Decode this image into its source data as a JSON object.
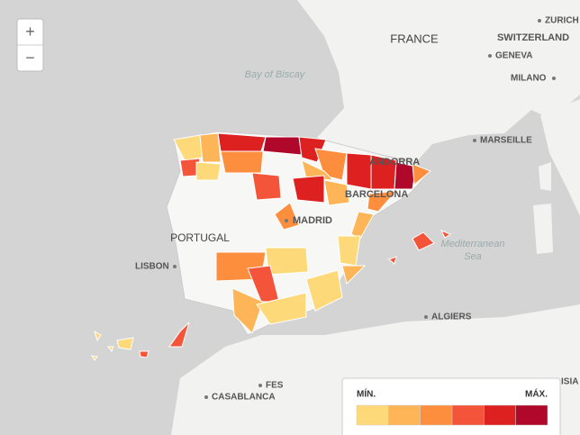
{
  "zoom": {
    "in": "+",
    "out": "−"
  },
  "labels": {
    "france": "FRANCE",
    "switzerland": "SWITZERLAND",
    "zurich": "ZURICH",
    "geneva": "GENEVA",
    "milano": "MILANO",
    "bay": "Bay of Biscay",
    "marseille": "MARSEILLE",
    "andorra": "ANDORRA",
    "barcelona": "BARCELONA",
    "madrid": "MADRID",
    "portugal": "PORTUGAL",
    "lisbon": "LISBON",
    "sea1": "Mediterranean",
    "sea2": "Sea",
    "algiers": "ALGIERS",
    "fes": "FES",
    "casablanca": "CASABLANCA",
    "tunisia": "ISIA"
  },
  "legend": {
    "min": "MÍN.",
    "max": "MÁX.",
    "colors": [
      "#fed97a",
      "#fdb557",
      "#fd8e3e",
      "#f4553a",
      "#dd2020",
      "#b0082a"
    ]
  }
}
